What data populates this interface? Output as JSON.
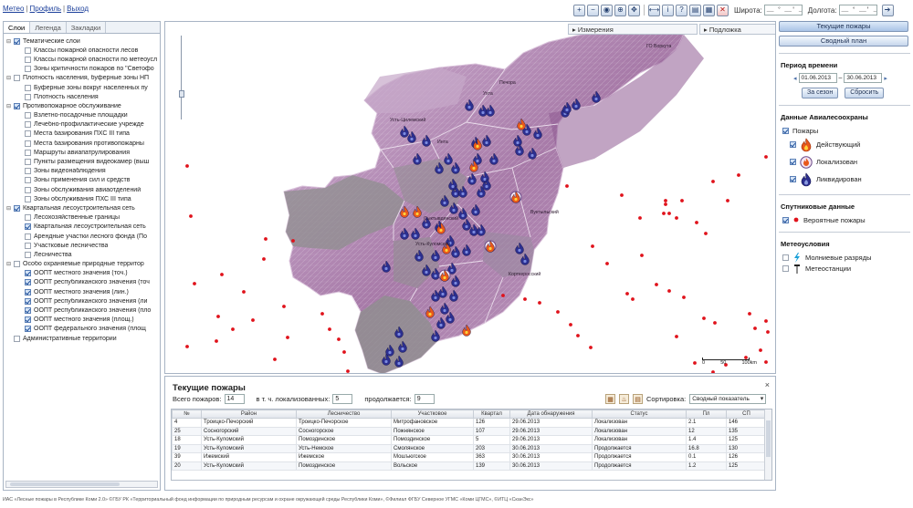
{
  "topnav": {
    "links": [
      "Метео",
      "Профиль",
      "Выход"
    ]
  },
  "toolbar": {
    "buttons": [
      "zoom-in",
      "zoom-out",
      "full-extent",
      "zoom-box",
      "pan",
      "measure",
      "info",
      "help",
      "print",
      "export",
      "clear"
    ],
    "lat_label": "Широта:",
    "lat_value": "__ ° __' __\"",
    "lon_label": "Долгота:",
    "lon_value": "__ ° __' __\"",
    "go_icon": "arrow-right"
  },
  "left": {
    "tabs": [
      "Слои",
      "Легенда",
      "Закладки"
    ],
    "layers": [
      {
        "level": 1,
        "toggle": "-",
        "checked": true,
        "label": "Тематические слои"
      },
      {
        "level": 2,
        "checked": false,
        "label": "Классы пожарной опасности лесов"
      },
      {
        "level": 2,
        "checked": false,
        "label": "Классы пожарной опасности по метеоусл"
      },
      {
        "level": 2,
        "checked": false,
        "label": "Зоны критичности пожаров по \"Светофо"
      },
      {
        "level": 1,
        "toggle": "-",
        "checked": false,
        "label": "Плотность населения, буферные зоны НП"
      },
      {
        "level": 2,
        "checked": false,
        "label": "Буферные зоны вокруг населенных пу"
      },
      {
        "level": 2,
        "checked": false,
        "label": "Плотность населения"
      },
      {
        "level": 1,
        "toggle": "-",
        "checked": true,
        "label": "Противопожарное обслуживание"
      },
      {
        "level": 2,
        "checked": false,
        "label": "Взлетно-посадочные площадки"
      },
      {
        "level": 2,
        "checked": false,
        "label": "Лечебно-профилактические учрежде"
      },
      {
        "level": 2,
        "checked": false,
        "label": "Места базирования ПХС III типа"
      },
      {
        "level": 2,
        "checked": false,
        "label": "Места базирования противопожарны"
      },
      {
        "level": 2,
        "checked": false,
        "label": "Маршруты авиапатрулирования"
      },
      {
        "level": 2,
        "checked": false,
        "label": "Пункты размещения видеокамер (выш"
      },
      {
        "level": 2,
        "checked": false,
        "label": "Зоны видеонаблюдения"
      },
      {
        "level": 2,
        "checked": false,
        "label": "Зоны применения сил и средств"
      },
      {
        "level": 2,
        "checked": false,
        "label": "Зоны обслуживания авиаотделений"
      },
      {
        "level": 2,
        "checked": false,
        "label": "Зоны обслуживания ПХС III типа"
      },
      {
        "level": 1,
        "toggle": "-",
        "checked": true,
        "label": "Квартальная лесоустроительная сеть"
      },
      {
        "level": 2,
        "checked": false,
        "label": "Лесохозяйственные границы"
      },
      {
        "level": 2,
        "checked": true,
        "label": "Квартальная лесоустроительная сеть"
      },
      {
        "level": 2,
        "checked": false,
        "label": "Арендные участки лесного фонда (По"
      },
      {
        "level": 2,
        "checked": false,
        "label": "Участковые лесничества"
      },
      {
        "level": 2,
        "checked": false,
        "label": "Лесничества"
      },
      {
        "level": 1,
        "toggle": "-",
        "checked": false,
        "label": "Особо охраняемые природные территор"
      },
      {
        "level": 2,
        "checked": true,
        "label": "ООПТ местного значения (точ.)"
      },
      {
        "level": 2,
        "checked": true,
        "label": "ООПТ республиканского значения (точ"
      },
      {
        "level": 2,
        "checked": true,
        "label": "ООПТ местного значения (лин.)"
      },
      {
        "level": 2,
        "checked": true,
        "label": "ООПТ республиканского значения (ли"
      },
      {
        "level": 2,
        "checked": true,
        "label": "ООПТ республиканского значения (пло"
      },
      {
        "level": 2,
        "checked": true,
        "label": "ООПТ местного значения (площ.)"
      },
      {
        "level": 2,
        "checked": true,
        "label": "ООПТ федерального значения (площ"
      },
      {
        "level": 1,
        "toggle": "",
        "checked": false,
        "label": "Административные территории"
      }
    ]
  },
  "map": {
    "measure_label": "Измерения",
    "underlay_label": "Подложка",
    "place_labels": [
      "ГО Воркута",
      "Усть-Цилемский",
      "Вуктыльский",
      "Сыктывдинский",
      "Корткеросский",
      "Усть-Куломский",
      "Ухта",
      "Печора",
      "Инта"
    ],
    "scale_labels": [
      "0",
      "50",
      "100km"
    ],
    "colors": {
      "region_fill": "#b07aae",
      "region_edge": "#d9c1da",
      "gray_zone": "#8f8f8f",
      "fire_active": "#e8581b",
      "fire_liquidated": "#2c2f8f",
      "satellite_dot": "#e0121b"
    }
  },
  "fires": {
    "title": "Текущие пожары",
    "total_label": "Всего пожаров:",
    "total_value": "14",
    "localized_label": "в т. ч. локализованных:",
    "localized_value": "5",
    "continues_label": "продолжается:",
    "continues_value": "9",
    "sort_label": "Сортировка:",
    "sort_value": "Сводный показатель",
    "close": "×",
    "columns": [
      "№",
      "Район",
      "Лесничество",
      "Участковое",
      "Квартал",
      "Дата обнаружения",
      "Статус",
      "Пл",
      "СП"
    ],
    "rows": [
      [
        "4",
        "Троицко-Печорский",
        "Троицко-Печорское",
        "Митрофановское",
        "126",
        "29.06.2013",
        "Локализован",
        "2.1",
        "146"
      ],
      [
        "25",
        "Сосногорский",
        "Сосногорское",
        "Пожнянское",
        "107",
        "29.06.2013",
        "Локализован",
        "12",
        "135"
      ],
      [
        "18",
        "Усть-Куломский",
        "Помоздинское",
        "Помоздинское",
        "5",
        "29.06.2013",
        "Локализован",
        "1.4",
        "125"
      ],
      [
        "19",
        "Усть-Куломский",
        "Усть-Немское",
        "Смолянское",
        "203",
        "30.06.2013",
        "Продолжается",
        "16.8",
        "130"
      ],
      [
        "39",
        "Ижемский",
        "Ижемское",
        "Мошъюгское",
        "363",
        "30.06.2013",
        "Продолжается",
        "0.1",
        "126"
      ],
      [
        "20",
        "Усть-Куломский",
        "Помоздинское",
        "Вольское",
        "139",
        "30.06.2013",
        "Продолжается",
        "1.2",
        "125"
      ]
    ]
  },
  "right": {
    "btn_current": "Текущие пожары",
    "btn_plan": "Сводный план",
    "period_title": "Период времени",
    "date_from": "01.06.2013",
    "date_to": "30.06.2013",
    "btn_season": "За сезон",
    "btn_reset": "Сбросить",
    "avia_title": "Данные Авиалесоохраны",
    "fires_label": "Пожары",
    "active_label": "Действующий",
    "localized_label": "Локализован",
    "liquidated_label": "Ликвидирован",
    "sat_title": "Спутниковые данные",
    "probable_label": "Вероятные пожары",
    "meteo_title": "Метеоусловия",
    "lightning_label": "Молниевые разряды",
    "stations_label": "Метеостанции"
  },
  "footer": "ИАС «Лесные пожары в Республике Коми 2.0» ©ГБУ РК «Территориальный фонд информации по природным ресурсам и охране окружающей среды Республики Коми», ©Филиал ФГБУ Северное УГМС «Коми ЦГМС», ©ИТЦ «СканЭкс»"
}
